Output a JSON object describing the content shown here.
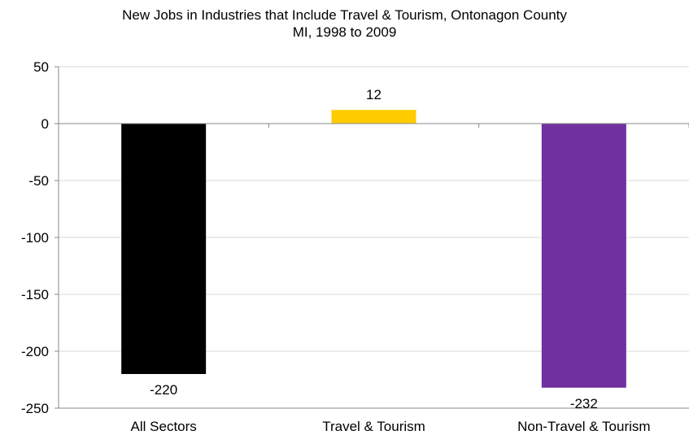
{
  "chart_data": {
    "type": "bar",
    "title_lines": [
      "New Jobs in Industries that Include Travel & Tourism, Ontonagon County",
      "MI, 1998 to 2009"
    ],
    "categories": [
      "All Sectors",
      "Travel & Tourism",
      "Non-Travel & Tourism"
    ],
    "values": [
      -220,
      12,
      -232
    ],
    "data_labels": [
      "-220",
      "12",
      "-232"
    ],
    "colors": [
      "#000000",
      "#FFCC00",
      "#7030A0"
    ],
    "yticks": [
      50,
      0,
      -50,
      -100,
      -150,
      -200,
      -250
    ],
    "ylim": [
      -250,
      50
    ],
    "xlabel": "",
    "ylabel": "",
    "grid": true,
    "legend": "none"
  }
}
